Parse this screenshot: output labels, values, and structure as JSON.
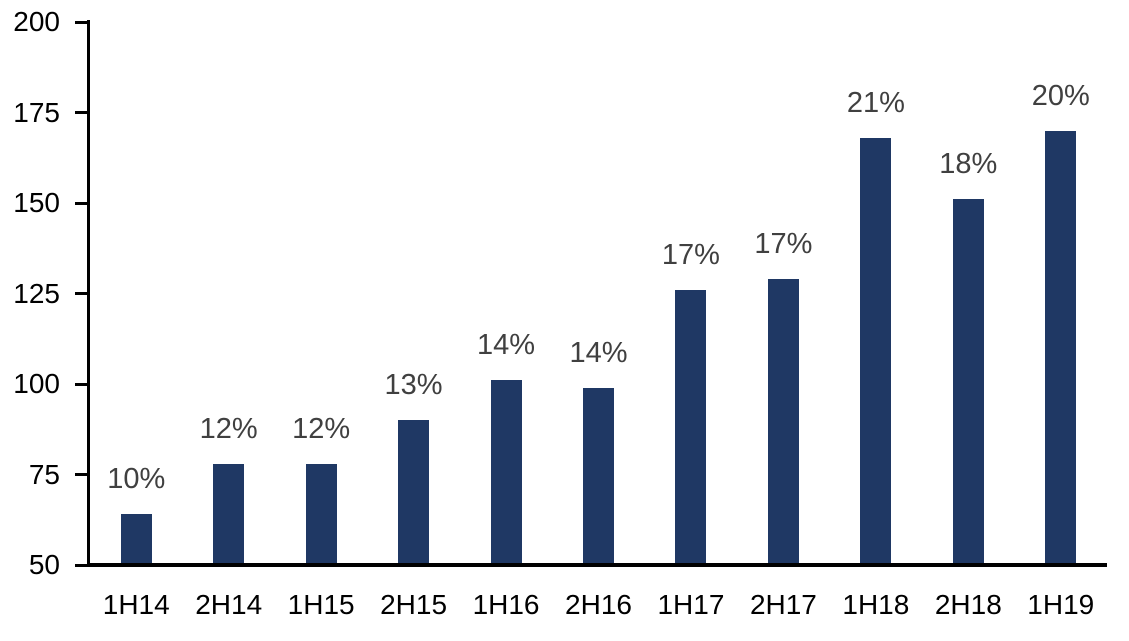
{
  "chart_data": {
    "type": "bar",
    "title": "",
    "xlabel": "",
    "ylabel": "",
    "categories": [
      "1H14",
      "2H14",
      "1H15",
      "2H15",
      "1H16",
      "2H16",
      "1H17",
      "2H17",
      "1H18",
      "2H18",
      "1H19"
    ],
    "values": [
      64,
      78,
      78,
      90,
      101,
      99,
      126,
      129,
      168,
      151,
      170
    ],
    "data_labels": [
      "10%",
      "12%",
      "12%",
      "13%",
      "14%",
      "14%",
      "17%",
      "17%",
      "21%",
      "18%",
      "20%"
    ],
    "ylim": [
      50,
      200
    ],
    "y_ticks": [
      50,
      75,
      100,
      125,
      150,
      175,
      200
    ],
    "grid": false,
    "legend_position": "none",
    "bar_color": "#1F3864",
    "data_label_color": "#404040",
    "axis_color": "#000000"
  }
}
